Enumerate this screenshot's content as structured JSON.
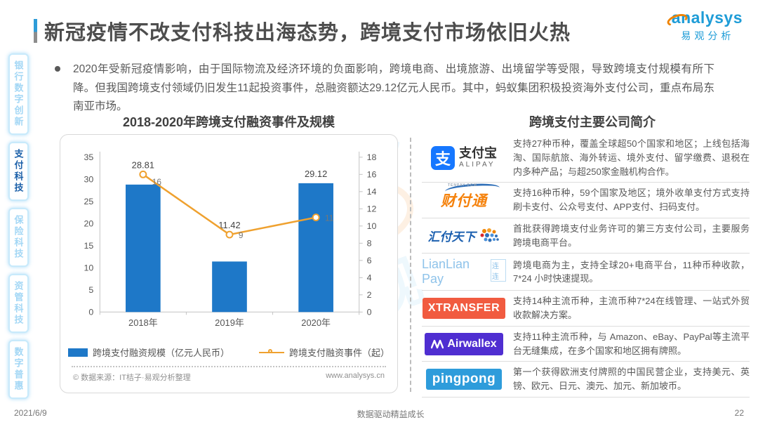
{
  "header": {
    "title": "新冠疫情不改支付科技出海态势，跨境支付市场依旧火热",
    "logo": {
      "brand": "analysys",
      "brand_cn": "易观分析"
    }
  },
  "sidebar": {
    "items": [
      {
        "label": "银行数字创新",
        "active": false
      },
      {
        "label": "支付科技",
        "active": true
      },
      {
        "label": "保险科技",
        "active": false
      },
      {
        "label": "资管科技",
        "active": false
      },
      {
        "label": "数字普惠",
        "active": false
      }
    ]
  },
  "intro": {
    "bullet_text": "2020年受新冠疫情影响，由于国际物流及经济环境的负面影响，跨境电商、出境旅游、出境留学等受限，导致跨境支付规模有所下降。但我国跨境支付领域仍旧发生11起投资事件，总融资额达29.12亿元人民币。其中，蚂蚁集团积极投资海外支付公司，重点布局东南亚市场。"
  },
  "chart_data": {
    "type": "bar",
    "title": "2018-2020年跨境支付融资事件及规模",
    "categories": [
      "2018年",
      "2019年",
      "2020年"
    ],
    "series": [
      {
        "name": "跨境支付融资规模（亿元人民币）",
        "type": "bar",
        "axis": "left",
        "color": "#1e78c8",
        "values": [
          28.81,
          11.42,
          29.12
        ]
      },
      {
        "name": "跨境支付融资事件（起）",
        "type": "line",
        "axis": "right",
        "color": "#efa12f",
        "values": [
          16,
          9,
          11
        ]
      }
    ],
    "left_axis": {
      "min": 0,
      "max": 35,
      "step": 5
    },
    "right_axis": {
      "min": 0,
      "max": 18,
      "step": 2
    },
    "grid": false,
    "legend_position": "bottom"
  },
  "chart_footer": {
    "source": "© 数据来源：IT桔子·易观分析整理",
    "website": "www.analysys.cn"
  },
  "companies": {
    "title": "跨境支付主要公司简介",
    "rows": [
      {
        "name": "支付宝",
        "logo": {
          "icon_char": "支",
          "title": "支付宝",
          "subtitle": "ALIPAY",
          "color": "#1677ff"
        },
        "desc": "支持27种币种，覆盖全球超50个国家和地区；上线包括海淘、国际航旅、海外转运、境外支付、留学缴费、退税在内多种产品；与超250家金融机构合作。"
      },
      {
        "name": "财付通",
        "logo": {
          "title": "财付通",
          "subtitle": "TENPAY.COM",
          "color": "#f5820c"
        },
        "desc": "支持16种币种，59个国家及地区；境外收单支付方式支持刷卡支付、公众号支付、APP支付、扫码支付。"
      },
      {
        "name": "汇付天下",
        "logo": {
          "title": "汇付天下",
          "color": "#1b5faf"
        },
        "desc": "首批获得跨境支付业务许可的第三方支付公司，主要服务跨境电商平台。"
      },
      {
        "name": "连连支付",
        "logo": {
          "title": "LianLian Pay",
          "subtitle": "连连",
          "color": "#8fc3ea"
        },
        "desc": "跨境电商为主，支持全球20+电商平台，11种币种收款，7*24 小时快速提现。"
      },
      {
        "name": "XTransfer",
        "logo": {
          "title": "XTRANSFER",
          "color": "#f15b40"
        },
        "desc": "支持14种主流币种，主流币种7*24在线管理、一站式外贸收款解决方案。"
      },
      {
        "name": "Airwallex",
        "logo": {
          "title": "Airwallex",
          "color": "#4f2ed1"
        },
        "desc": "支持11种主流币种，与 Amazon、eBay、PayPal等主流平台无缝集成，在多个国家和地区拥有牌照。"
      },
      {
        "name": "PingPong",
        "logo": {
          "title": "pingpong",
          "color": "#2e9cdb"
        },
        "desc": "第一个获得欧洲支付牌照的中国民营企业，支持美元、英镑、欧元、日元、澳元、加元、新加坡币。"
      }
    ]
  },
  "footer": {
    "date": "2021/6/9",
    "slogan": "数据驱动精益成长",
    "page": "22"
  }
}
